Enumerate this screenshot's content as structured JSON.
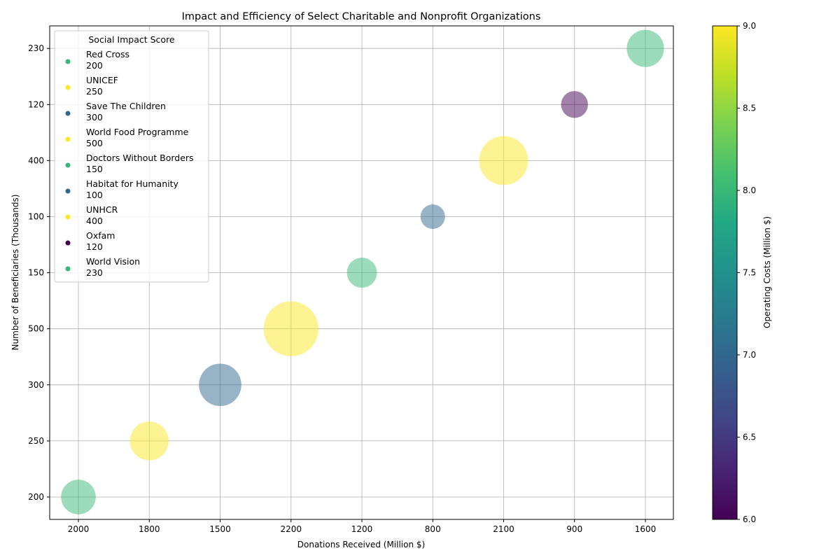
{
  "chart_data": {
    "type": "scatter",
    "title": "Impact and Efficiency of Select Charitable and Nonprofit Organizations",
    "xlabel": "Donations Received (Million $)",
    "ylabel": "Number of Beneficiaries (Thousands)",
    "x_axis_type": "categorical",
    "y_axis_type": "categorical",
    "x_categories": [
      "2000",
      "1800",
      "1500",
      "2200",
      "1200",
      "800",
      "2100",
      "900",
      "1600"
    ],
    "y_categories": [
      "200",
      "250",
      "300",
      "500",
      "150",
      "100",
      "400",
      "120",
      "230"
    ],
    "grid": true,
    "legend": {
      "title": "Social Impact Score",
      "placement": "top-left"
    },
    "colorbar": {
      "label": "Operating Costs (Million $)",
      "colormap": "viridis",
      "range": [
        6,
        9
      ],
      "ticks": [
        "6.0",
        "6.5",
        "7.0",
        "7.5",
        "8.0",
        "8.5",
        "9.0"
      ]
    },
    "points": [
      {
        "name": "Red Cross",
        "x": "2000",
        "y": "200",
        "size_value": 200,
        "color_value": 8.0
      },
      {
        "name": "UNICEF",
        "x": "1800",
        "y": "250",
        "size_value": 250,
        "color_value": 9.0
      },
      {
        "name": "Save The Children",
        "x": "1500",
        "y": "300",
        "size_value": 300,
        "color_value": 7.0
      },
      {
        "name": "World Food Programme",
        "x": "2200",
        "y": "500",
        "size_value": 500,
        "color_value": 9.0
      },
      {
        "name": "Doctors Without Borders",
        "x": "1200",
        "y": "150",
        "size_value": 150,
        "color_value": 8.0
      },
      {
        "name": "Habitat for Humanity",
        "x": "800",
        "y": "100",
        "size_value": 100,
        "color_value": 7.0
      },
      {
        "name": "UNHCR",
        "x": "2100",
        "y": "400",
        "size_value": 400,
        "color_value": 9.0
      },
      {
        "name": "Oxfam",
        "x": "900",
        "y": "120",
        "size_value": 120,
        "color_value": 6.0
      },
      {
        "name": "World Vision",
        "x": "1600",
        "y": "230",
        "size_value": 230,
        "color_value": 8.0
      }
    ]
  }
}
